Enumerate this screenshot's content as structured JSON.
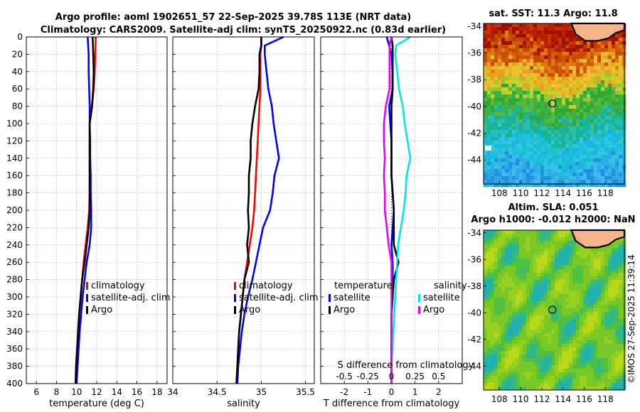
{
  "title_line1": "Argo profile: aoml 1902651_57 22-Sep-2025 39.78S 113E (NRT data)",
  "title_line2": "Climatology: CARS2009. Satellite-adj clim: synTS_20250922.nc (0.83d earlier)",
  "watermark": "©IMOS 27-Sep-2025 11:39:14",
  "colors": {
    "red": "#ff0000",
    "blue": "#0000ff",
    "black": "#000000",
    "cyan": "#00e5ee",
    "magenta": "#ee00ee",
    "grid": "#b0b0b0"
  },
  "chart_data": [
    {
      "id": "temperature",
      "type": "line",
      "xlabel": "temperature (deg C)",
      "xlim": [
        5,
        19
      ],
      "xticks": [
        6,
        8,
        10,
        12,
        14,
        16,
        18
      ],
      "ylim": [
        0,
        400
      ],
      "yticks": [
        0,
        20,
        40,
        60,
        80,
        100,
        120,
        140,
        160,
        180,
        200,
        220,
        240,
        260,
        280,
        300,
        320,
        340,
        360,
        380,
        400
      ],
      "depth": [
        0,
        20,
        40,
        60,
        80,
        100,
        120,
        140,
        160,
        180,
        200,
        220,
        240,
        260,
        280,
        300,
        320,
        340,
        360,
        380,
        400
      ],
      "series": [
        {
          "name": "climatology",
          "color_key": "red",
          "values": [
            11.9,
            11.85,
            11.8,
            11.7,
            11.5,
            11.3,
            11.3,
            11.3,
            11.3,
            11.3,
            11.25,
            11.1,
            10.9,
            10.7,
            10.55,
            10.4,
            10.25,
            10.15,
            10.05,
            9.95,
            9.9
          ]
        },
        {
          "name": "satellite-adj. clim",
          "color_key": "blue",
          "values": [
            11.1,
            11.2,
            11.2,
            11.25,
            11.3,
            11.3,
            11.35,
            11.35,
            11.4,
            11.4,
            11.45,
            11.45,
            11.3,
            11.0,
            10.8,
            10.6,
            10.45,
            10.3,
            10.2,
            10.1,
            10.0
          ]
        },
        {
          "name": "Argo",
          "color_key": "black",
          "values": [
            11.6,
            11.65,
            11.7,
            11.65,
            11.55,
            11.3,
            11.3,
            11.3,
            11.3,
            11.3,
            11.3,
            11.2,
            11.0,
            10.8,
            10.55,
            10.4,
            10.25,
            10.15,
            10.05,
            9.95,
            9.9
          ]
        }
      ],
      "legend": [
        "climatology",
        "satellite-adj. clim",
        "Argo"
      ]
    },
    {
      "id": "salinity",
      "type": "line",
      "xlabel": "salinity",
      "xlim": [
        34.0,
        35.6
      ],
      "xticks": [
        34.0,
        34.5,
        35.0,
        35.5
      ],
      "xtick_labels": [
        "34",
        "34.5",
        "35",
        "35.5"
      ],
      "ylim": [
        0,
        400
      ],
      "depth": [
        0,
        10,
        20,
        40,
        60,
        80,
        100,
        120,
        140,
        160,
        180,
        200,
        220,
        240,
        260,
        280,
        300,
        320,
        340,
        360,
        380,
        400
      ],
      "series": [
        {
          "name": "climatology",
          "color_key": "red",
          "values": [
            35.0,
            35.0,
            34.99,
            34.99,
            34.99,
            34.98,
            34.97,
            34.96,
            34.95,
            34.94,
            34.93,
            34.92,
            34.9,
            34.87,
            34.84,
            34.81,
            34.79,
            34.77,
            34.75,
            34.74,
            34.73,
            34.72
          ]
        },
        {
          "name": "satellite-adj. clim",
          "color_key": "blue",
          "values": [
            35.25,
            35.04,
            35.04,
            35.06,
            35.08,
            35.12,
            35.14,
            35.17,
            35.2,
            35.15,
            35.13,
            35.1,
            35.02,
            34.98,
            34.94,
            34.9,
            34.85,
            34.81,
            34.78,
            34.76,
            34.74,
            34.73
          ]
        },
        {
          "name": "Argo",
          "color_key": "black",
          "values": [
            35.0,
            35.0,
            34.98,
            34.98,
            34.97,
            34.93,
            34.9,
            34.88,
            34.88,
            34.86,
            34.86,
            34.85,
            34.86,
            34.84,
            34.86,
            34.81,
            34.79,
            34.77,
            34.75,
            34.74,
            34.73,
            34.72
          ]
        }
      ],
      "legend": [
        "climatology",
        "satellite-adj. clim",
        "Argo"
      ]
    },
    {
      "id": "differences",
      "type": "line",
      "xlabel": "T difference from climatology",
      "xlim": [
        -3,
        3
      ],
      "xticks": [
        -2,
        -1,
        0,
        1,
        2
      ],
      "top_axis_label": "S difference from climatology",
      "top_xticks": [
        -0.5,
        -0.25,
        0,
        0.25,
        0.5
      ],
      "top_xtick_labels": [
        "-0.5",
        "-0.25",
        "0",
        "0.25",
        "0.5"
      ],
      "top_xlim": [
        -0.75,
        0.75
      ],
      "ylim": [
        0,
        400
      ],
      "depth": [
        0,
        10,
        20,
        40,
        60,
        80,
        100,
        120,
        140,
        160,
        180,
        200,
        220,
        240,
        260,
        280,
        300,
        320,
        340,
        360,
        380,
        400
      ],
      "series": [
        {
          "name": "temperature satellite",
          "color_key": "blue",
          "axis": "T",
          "values": [
            -0.2,
            -0.1,
            0.0,
            0.05,
            0.05,
            -0.1,
            -0.05,
            0.0,
            0.0,
            0.0,
            0.05,
            0.1,
            0.05,
            0.0,
            0.05,
            0.05,
            0.05,
            0.0,
            0.0,
            0.0,
            0.0,
            0.0
          ]
        },
        {
          "name": "temperature Argo",
          "color_key": "black",
          "axis": "T",
          "values": [
            0.0,
            0.05,
            0.05,
            0.05,
            0.05,
            0.0,
            0.0,
            0.0,
            0.0,
            0.0,
            0.05,
            0.1,
            0.1,
            0.1,
            0.3,
            0.1,
            0.05,
            0.0,
            0.0,
            0.0,
            0.0,
            0.0
          ]
        },
        {
          "name": "salinity satellite",
          "color_key": "cyan",
          "axis": "S",
          "values": [
            0.2,
            0.05,
            0.04,
            0.06,
            0.08,
            0.12,
            0.14,
            0.17,
            0.2,
            0.16,
            0.15,
            0.13,
            0.1,
            0.07,
            0.06,
            0.05,
            0.04,
            0.03,
            0.02,
            0.01,
            0.0,
            0.0
          ]
        },
        {
          "name": "salinity Argo",
          "color_key": "magenta",
          "axis": "S",
          "values": [
            0.0,
            -0.02,
            -0.02,
            -0.02,
            -0.02,
            -0.06,
            -0.08,
            -0.08,
            -0.07,
            -0.08,
            -0.07,
            -0.07,
            -0.05,
            -0.03,
            0.0,
            0.0,
            0.0,
            0.0,
            0.0,
            0.0,
            0.0,
            0.0
          ]
        }
      ],
      "legend_left_title": "temperature",
      "legend_right_title": "salinity",
      "legend_left": [
        "satellite",
        "Argo"
      ],
      "legend_right": [
        "satellite",
        "Argo"
      ]
    },
    {
      "id": "sst_map",
      "type": "heatmap",
      "title": "sat. SST: 11.3 Argo: 11.8",
      "xlim": [
        106.5,
        119.8
      ],
      "ylim": [
        -45.8,
        -33.8
      ],
      "xticks": [
        108,
        110,
        112,
        114,
        116,
        118
      ],
      "yticks": [
        -34,
        -36,
        -38,
        -40,
        -42,
        -44
      ],
      "marker": {
        "lon": 113.0,
        "lat": -39.78
      }
    },
    {
      "id": "sla_map",
      "type": "heatmap",
      "title_line1": "Altim. SLA: 0.051",
      "title_line2": "Argo h1000: -0.012 h2000: NaN",
      "xlim": [
        106.5,
        119.8
      ],
      "ylim": [
        -45.8,
        -33.8
      ],
      "xticks": [
        108,
        110,
        112,
        114,
        116,
        118
      ],
      "yticks": [
        -34,
        -36,
        -38,
        -40,
        -42,
        -44
      ],
      "marker": {
        "lon": 113.0,
        "lat": -39.78
      }
    }
  ]
}
